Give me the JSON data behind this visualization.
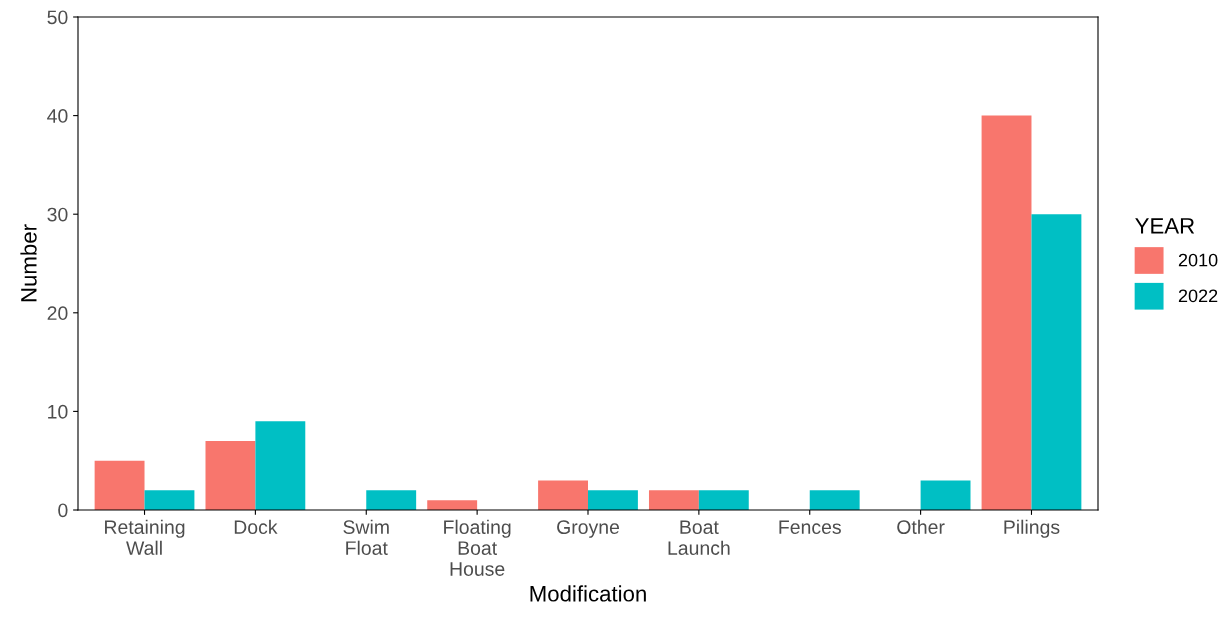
{
  "chart_data": {
    "type": "bar",
    "xlabel": "Modification",
    "ylabel": "Number",
    "legend_title": "YEAR",
    "categories": [
      "Retaining\nWall",
      "Dock",
      "Swim\nFloat",
      "Floating\nBoat\nHouse",
      "Groyne",
      "Boat\nLaunch",
      "Fences",
      "Other",
      "Pilings"
    ],
    "series": [
      {
        "name": "2010",
        "color": "#f8766d",
        "values": [
          5,
          7,
          0,
          1,
          3,
          2,
          0,
          0,
          40
        ]
      },
      {
        "name": "2022",
        "color": "#00bfc4",
        "values": [
          2,
          9,
          2,
          0,
          2,
          2,
          2,
          3,
          30
        ]
      }
    ],
    "ylim": [
      0,
      50
    ],
    "yticks": [
      0,
      10,
      20,
      30,
      40,
      50
    ],
    "grid": false,
    "legend": "right"
  }
}
